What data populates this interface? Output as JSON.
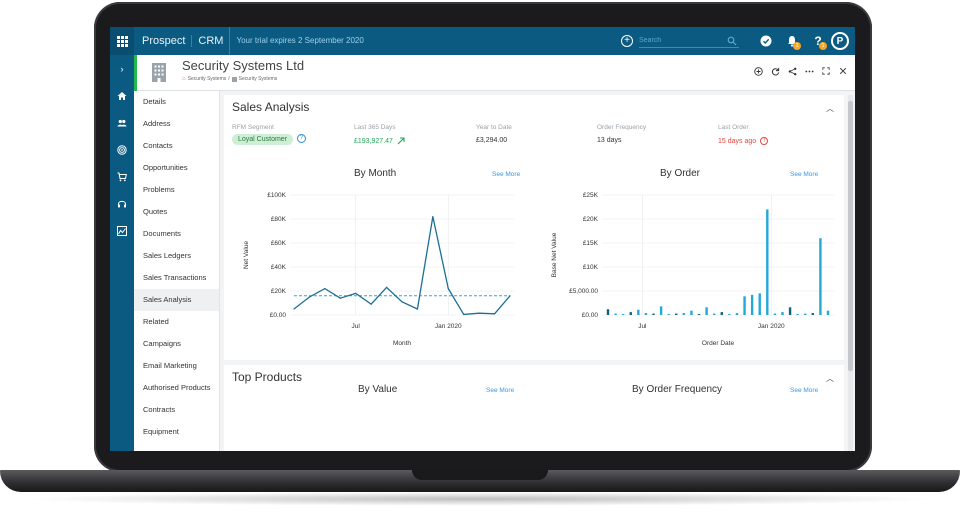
{
  "topbar": {
    "brand": "Prospect",
    "product": "CRM",
    "trial_text": "Your trial expires 2 September 2020",
    "search_placeholder": "Search",
    "notifications_badge": "1",
    "help_badge": "1",
    "avatar_letter": "P"
  },
  "record": {
    "title": "Security Systems Ltd",
    "breadcrumb": [
      "Security Systems",
      "Security Systems"
    ]
  },
  "sidenav": {
    "items": [
      "Details",
      "Address",
      "Contacts",
      "Opportunities",
      "Problems",
      "Quotes",
      "Documents",
      "Sales Ledgers",
      "Sales Transactions",
      "Sales Analysis",
      "Related",
      "Campaigns",
      "Email Marketing",
      "Authorised Products",
      "Contracts",
      "Equipment"
    ],
    "active": "Sales Analysis"
  },
  "sales_analysis": {
    "title": "Sales Analysis",
    "rfm_label": "RFM Segment",
    "rfm_value": "Loyal Customer",
    "last365_label": "Last 365 Days",
    "last365_value": "£193,927.47",
    "ytd_label": "Year to Date",
    "ytd_value": "£3,294.00",
    "freq_label": "Order Frequency",
    "freq_value": "13 days",
    "last_order_label": "Last Order",
    "last_order_value": "15 days ago",
    "by_month_title": "By Month",
    "by_order_title": "By Order",
    "see_more": "See More"
  },
  "top_products": {
    "title": "Top Products",
    "by_value_title": "By Value",
    "by_freq_title": "By Order Frequency",
    "see_more": "See More"
  },
  "colors": {
    "brand": "#0b5a82",
    "line": "#1d6f94",
    "bar_light": "#22a9d6",
    "bar_dark": "#13607f",
    "avg_line": "#29a9d8",
    "positive": "#26a65b",
    "warning": "#e4473d"
  },
  "chart_data": [
    {
      "type": "line",
      "title": "By Month",
      "xlabel": "Month",
      "ylabel": "Net Value",
      "x_ticks": [
        "Jul",
        "Jan 2020"
      ],
      "y_ticks": [
        "£0.00",
        "£20K",
        "£40K",
        "£60K",
        "£80K",
        "£100K"
      ],
      "ylim": [
        0,
        100000
      ],
      "series": [
        {
          "values": [
            5000,
            15000,
            22000,
            14000,
            18000,
            9000,
            23000,
            11000,
            5000,
            82000,
            22000,
            500,
            1500,
            1000,
            16000
          ]
        }
      ],
      "average": 16000
    },
    {
      "type": "bar",
      "title": "By Order",
      "xlabel": "Order Date",
      "ylabel": "Base Net Value",
      "x_ticks": [
        "Jul",
        "Jan 2020"
      ],
      "y_ticks": [
        "£0.00",
        "£5,000.00",
        "£10K",
        "£15K",
        "£20K",
        "£25K"
      ],
      "ylim": [
        0,
        25000
      ],
      "values": [
        1200,
        300,
        200,
        600,
        1100,
        400,
        300,
        1800,
        200,
        300,
        400,
        900,
        200,
        1600,
        300,
        600,
        200,
        400,
        3900,
        4200,
        4500,
        22000,
        300,
        600,
        1600,
        200,
        300,
        400,
        16000,
        900
      ]
    }
  ]
}
